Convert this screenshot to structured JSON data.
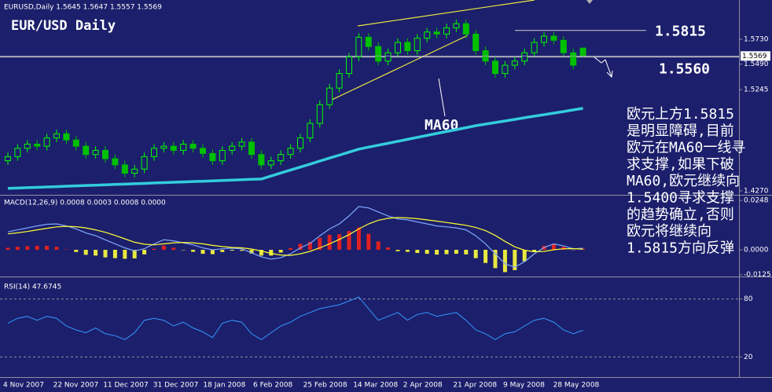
{
  "chart_data": [
    {
      "type": "candlestick",
      "header": "EURUSD,Daily  1.5645 1.5647 1.5557 1.5569",
      "title": "EUR/USD Daily",
      "up_color": "#00ff00",
      "down_color": "#00c000",
      "ylim": [
        1.4232,
        1.6093
      ],
      "yticks": [
        {
          "value": 1.573,
          "label": "1.5730"
        },
        {
          "value": 1.549,
          "label": "1.5490"
        },
        1.5245,
        {
          "value": 1.427,
          "label": "1.4270"
        }
      ],
      "current_price": 1.5569,
      "open": [
        1.456,
        1.46,
        1.468,
        1.472,
        1.47,
        1.478,
        1.482,
        1.476,
        1.47,
        1.462,
        1.466,
        1.458,
        1.452,
        1.444,
        1.448,
        1.46,
        1.468,
        1.47,
        1.466,
        1.472,
        1.468,
        1.463,
        1.456,
        1.466,
        1.47,
        1.474,
        1.462,
        1.452,
        1.456,
        1.462,
        1.468,
        1.478,
        1.492,
        1.51,
        1.526,
        1.54,
        1.556,
        1.575,
        1.566,
        1.552,
        1.56,
        1.57,
        1.562,
        1.574,
        1.58,
        1.578,
        1.584,
        1.588,
        1.578,
        1.562,
        1.552,
        1.54,
        1.548,
        1.552,
        1.56,
        1.57,
        1.576,
        1.572,
        1.56,
        1.5645
      ],
      "high": [
        1.464,
        1.472,
        1.476,
        1.476,
        1.482,
        1.486,
        1.486,
        1.48,
        1.474,
        1.47,
        1.47,
        1.462,
        1.456,
        1.452,
        1.464,
        1.472,
        1.474,
        1.474,
        1.476,
        1.476,
        1.472,
        1.467,
        1.47,
        1.474,
        1.478,
        1.478,
        1.466,
        1.46,
        1.466,
        1.472,
        1.482,
        1.496,
        1.514,
        1.53,
        1.544,
        1.56,
        1.579,
        1.579,
        1.57,
        1.564,
        1.574,
        1.574,
        1.578,
        1.584,
        1.584,
        1.588,
        1.592,
        1.592,
        1.582,
        1.566,
        1.556,
        1.552,
        1.556,
        1.564,
        1.574,
        1.58,
        1.58,
        1.576,
        1.564,
        1.5647
      ],
      "low": [
        1.452,
        1.456,
        1.464,
        1.466,
        1.466,
        1.474,
        1.472,
        1.466,
        1.458,
        1.458,
        1.454,
        1.448,
        1.44,
        1.44,
        1.444,
        1.456,
        1.464,
        1.462,
        1.462,
        1.464,
        1.459,
        1.452,
        1.452,
        1.462,
        1.466,
        1.458,
        1.448,
        1.448,
        1.452,
        1.458,
        1.464,
        1.474,
        1.488,
        1.506,
        1.522,
        1.536,
        1.552,
        1.562,
        1.548,
        1.548,
        1.556,
        1.558,
        1.558,
        1.57,
        1.574,
        1.574,
        1.58,
        1.574,
        1.558,
        1.548,
        1.536,
        1.536,
        1.544,
        1.548,
        1.556,
        1.566,
        1.568,
        1.556,
        1.544,
        1.5557
      ],
      "close": [
        1.46,
        1.468,
        1.472,
        1.47,
        1.478,
        1.482,
        1.476,
        1.47,
        1.462,
        1.466,
        1.458,
        1.452,
        1.444,
        1.448,
        1.46,
        1.468,
        1.47,
        1.466,
        1.472,
        1.468,
        1.463,
        1.456,
        1.466,
        1.47,
        1.474,
        1.462,
        1.452,
        1.456,
        1.462,
        1.468,
        1.478,
        1.492,
        1.51,
        1.526,
        1.54,
        1.556,
        1.575,
        1.566,
        1.552,
        1.56,
        1.57,
        1.562,
        1.574,
        1.58,
        1.578,
        1.584,
        1.588,
        1.578,
        1.562,
        1.552,
        1.54,
        1.548,
        1.552,
        1.56,
        1.57,
        1.576,
        1.572,
        1.56,
        1.548,
        1.5569
      ],
      "series": [
        {
          "name": "MA60",
          "color": "#33ccdd",
          "values": [
            1.4294,
            1.4297,
            1.4301,
            1.4304,
            1.4308,
            1.4311,
            1.4315,
            1.4318,
            1.4322,
            1.4325,
            1.4329,
            1.4332,
            1.4335,
            1.4339,
            1.4342,
            1.4346,
            1.4349,
            1.4353,
            1.4356,
            1.436,
            1.4363,
            1.4367,
            1.437,
            1.4374,
            1.4377,
            1.4381,
            1.4384,
            1.4413,
            1.4442,
            1.4471,
            1.4499,
            1.4528,
            1.4557,
            1.4586,
            1.4614,
            1.4643,
            1.4672,
            1.4691,
            1.471,
            1.4728,
            1.4747,
            1.4766,
            1.4785,
            1.4804,
            1.4823,
            1.4842,
            1.486,
            1.4879,
            1.4898,
            1.4913,
            1.4928,
            1.4943,
            1.4958,
            1.4974,
            1.4989,
            1.5004,
            1.5019,
            1.5034,
            1.505,
            1.5065
          ]
        }
      ],
      "levels": [
        {
          "value": 1.5815,
          "label": "1.5815"
        },
        {
          "value": 1.556,
          "label": "1.5560"
        }
      ],
      "note": [
        "欧元上方1.5815",
        "是明显障碍,目前",
        "欧元在MA60一线寻",
        "求支撑,如果下破",
        "MA60,欧元继续向",
        "1.5400寻求支撑",
        "的趋势确立,否则",
        "欧元将继续向",
        "1.5815方向反弹"
      ]
    },
    {
      "type": "bar",
      "header": "MACD(12,26,9) 0.0008 0.0003 0.0008 0.0000",
      "up_color": "#e02020",
      "down_color": "#e8e840",
      "ylim": [
        -0.0134,
        0.0268
      ],
      "yticks": [
        0.0248,
        {
          "value": 0,
          "label": "0.0000"
        },
        -0.0125
      ],
      "values": [
        0.001,
        0.0015,
        0.0018,
        0.002,
        0.002,
        0.0015,
        0.0002,
        -0.0011,
        -0.0025,
        -0.0029,
        -0.0038,
        -0.0042,
        -0.0045,
        -0.0043,
        -0.0023,
        0.0005,
        0.0021,
        0.001,
        -0.0002,
        -0.001,
        -0.002,
        -0.0022,
        -0.0011,
        -0.0004,
        -0.0005,
        -0.0019,
        -0.0029,
        -0.0029,
        -0.0014,
        0.0008,
        0.003,
        0.004,
        0.006,
        0.0075,
        0.0078,
        0.0094,
        0.0112,
        0.008,
        0.0042,
        0.0012,
        -0.0007,
        -0.001,
        -0.0016,
        -0.002,
        -0.0024,
        -0.0022,
        -0.002,
        -0.0023,
        -0.0042,
        -0.0066,
        -0.0092,
        -0.0112,
        -0.0102,
        -0.0058,
        -0.001,
        0.002,
        0.003,
        0.0015,
        -0.0001,
        0.0005
      ],
      "series": [
        {
          "color": "#7fa8ff",
          "values": [
            0.009,
            0.01,
            0.011,
            0.012,
            0.0128,
            0.013,
            0.012,
            0.0105,
            0.0085,
            0.0071,
            0.005,
            0.003,
            0.001,
            -0.0005,
            0.0005,
            0.003,
            0.0051,
            0.0045,
            0.0035,
            0.0025,
            0.001,
            0.0,
            0.0005,
            0.0008,
            0.0005,
            -0.0015,
            -0.0035,
            -0.0047,
            -0.004,
            -0.002,
            0.001,
            0.0032,
            0.007,
            0.0105,
            0.013,
            0.017,
            0.0217,
            0.021,
            0.019,
            0.017,
            0.0155,
            0.015,
            0.014,
            0.013,
            0.012,
            0.0115,
            0.011,
            0.01,
            0.007,
            0.003,
            -0.002,
            -0.007,
            -0.0087,
            -0.006,
            -0.002,
            0.0012,
            0.003,
            0.002,
            0.0005,
            0.0008
          ]
        },
        {
          "color": "#ffff33",
          "values": [
            0.008,
            0.0085,
            0.0092,
            0.01,
            0.0108,
            0.0115,
            0.0118,
            0.0116,
            0.011,
            0.01,
            0.0088,
            0.0072,
            0.0055,
            0.0038,
            0.0028,
            0.0025,
            0.003,
            0.0035,
            0.0037,
            0.0035,
            0.003,
            0.0022,
            0.0016,
            0.0012,
            0.001,
            0.0004,
            -0.0006,
            -0.0018,
            -0.0026,
            -0.0028,
            -0.002,
            -0.0008,
            0.001,
            0.003,
            0.0052,
            0.0076,
            0.0105,
            0.013,
            0.0148,
            0.0158,
            0.0162,
            0.016,
            0.0156,
            0.015,
            0.0144,
            0.0137,
            0.013,
            0.0123,
            0.0112,
            0.0096,
            0.0072,
            0.0042,
            0.0015,
            -0.0002,
            -0.001,
            -0.0008,
            0.0,
            0.0005,
            0.0006,
            0.0003
          ]
        }
      ]
    },
    {
      "type": "line",
      "header": "RSI(14) 47.6745",
      "ylim": [
        0,
        100
      ],
      "yticks": [
        80,
        20
      ],
      "series": [
        {
          "color": "#3399ff",
          "values": [
            55,
            60,
            62,
            58,
            62,
            60,
            52,
            48,
            45,
            50,
            44,
            42,
            38,
            45,
            58,
            60,
            58,
            52,
            56,
            50,
            46,
            40,
            55,
            58,
            56,
            44,
            38,
            45,
            52,
            56,
            62,
            66,
            70,
            72,
            74,
            78,
            82,
            70,
            58,
            62,
            66,
            58,
            64,
            66,
            62,
            64,
            66,
            58,
            48,
            44,
            38,
            44,
            46,
            52,
            58,
            60,
            56,
            48,
            44,
            47.6745
          ]
        }
      ],
      "x_labels": [
        "4 Nov 2007",
        "22 Nov 2007",
        "11 Dec 2007",
        "31 Dec 2007",
        "18 Jan 2008",
        "6 Feb 2008",
        "25 Feb 2008",
        "14 Mar 2008",
        "2 Apr 2008",
        "21 Apr 2008",
        "9 May 2008",
        "28 May 2008"
      ]
    }
  ]
}
